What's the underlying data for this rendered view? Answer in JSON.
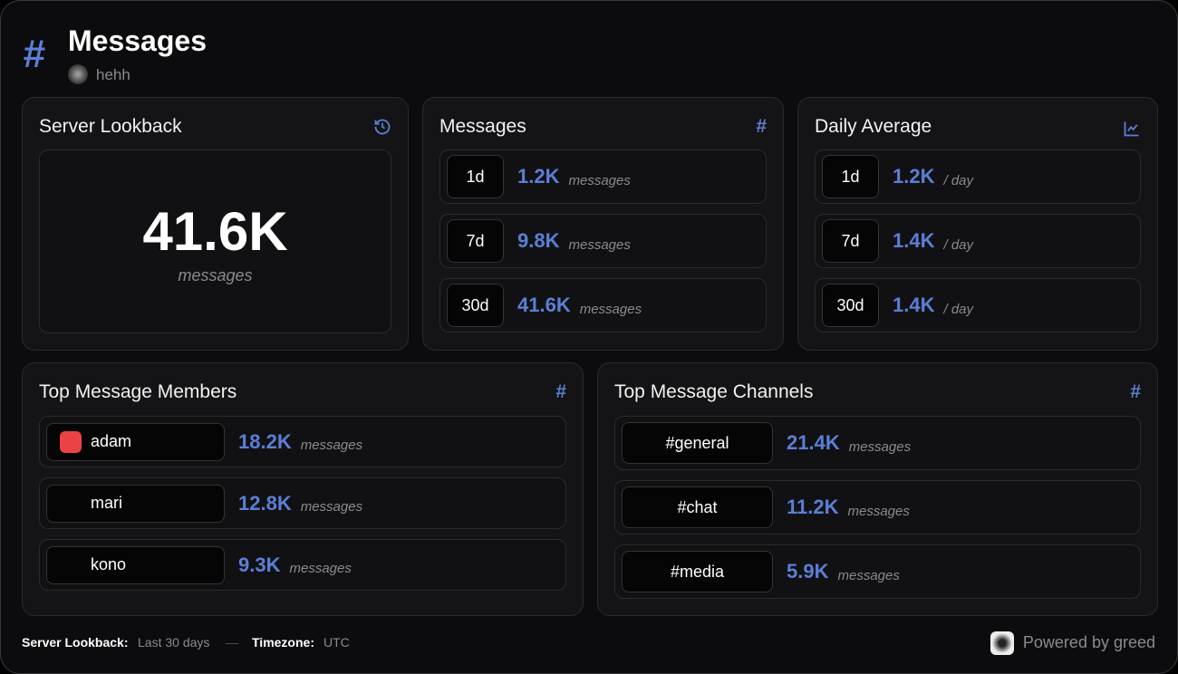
{
  "header": {
    "icon": "#",
    "title": "Messages",
    "server": "hehh"
  },
  "lookback": {
    "title": "Server Lookback",
    "value": "41.6K",
    "unit": "messages"
  },
  "messages": {
    "title": "Messages",
    "icon": "#",
    "rows": [
      {
        "period": "1d",
        "value": "1.2K",
        "unit": "messages"
      },
      {
        "period": "7d",
        "value": "9.8K",
        "unit": "messages"
      },
      {
        "period": "30d",
        "value": "41.6K",
        "unit": "messages"
      }
    ]
  },
  "daily": {
    "title": "Daily Average",
    "rows": [
      {
        "period": "1d",
        "value": "1.2K",
        "unit": "/ day"
      },
      {
        "period": "7d",
        "value": "1.4K",
        "unit": "/ day"
      },
      {
        "period": "30d",
        "value": "1.4K",
        "unit": "/ day"
      }
    ]
  },
  "members": {
    "title": "Top Message Members",
    "icon": "#",
    "rows": [
      {
        "name": "adam",
        "value": "18.2K",
        "unit": "messages"
      },
      {
        "name": "mari",
        "value": "12.8K",
        "unit": "messages"
      },
      {
        "name": "kono",
        "value": "9.3K",
        "unit": "messages"
      }
    ]
  },
  "channels": {
    "title": "Top Message Channels",
    "icon": "#",
    "rows": [
      {
        "name": "#general",
        "value": "21.4K",
        "unit": "messages"
      },
      {
        "name": "#chat",
        "value": "11.2K",
        "unit": "messages"
      },
      {
        "name": "#media",
        "value": "5.9K",
        "unit": "messages"
      }
    ]
  },
  "footer": {
    "lookback_label": "Server Lookback:",
    "lookback_value": "Last 30 days",
    "separator": "—",
    "timezone_label": "Timezone:",
    "timezone_value": "UTC",
    "powered": "Powered by greed"
  }
}
